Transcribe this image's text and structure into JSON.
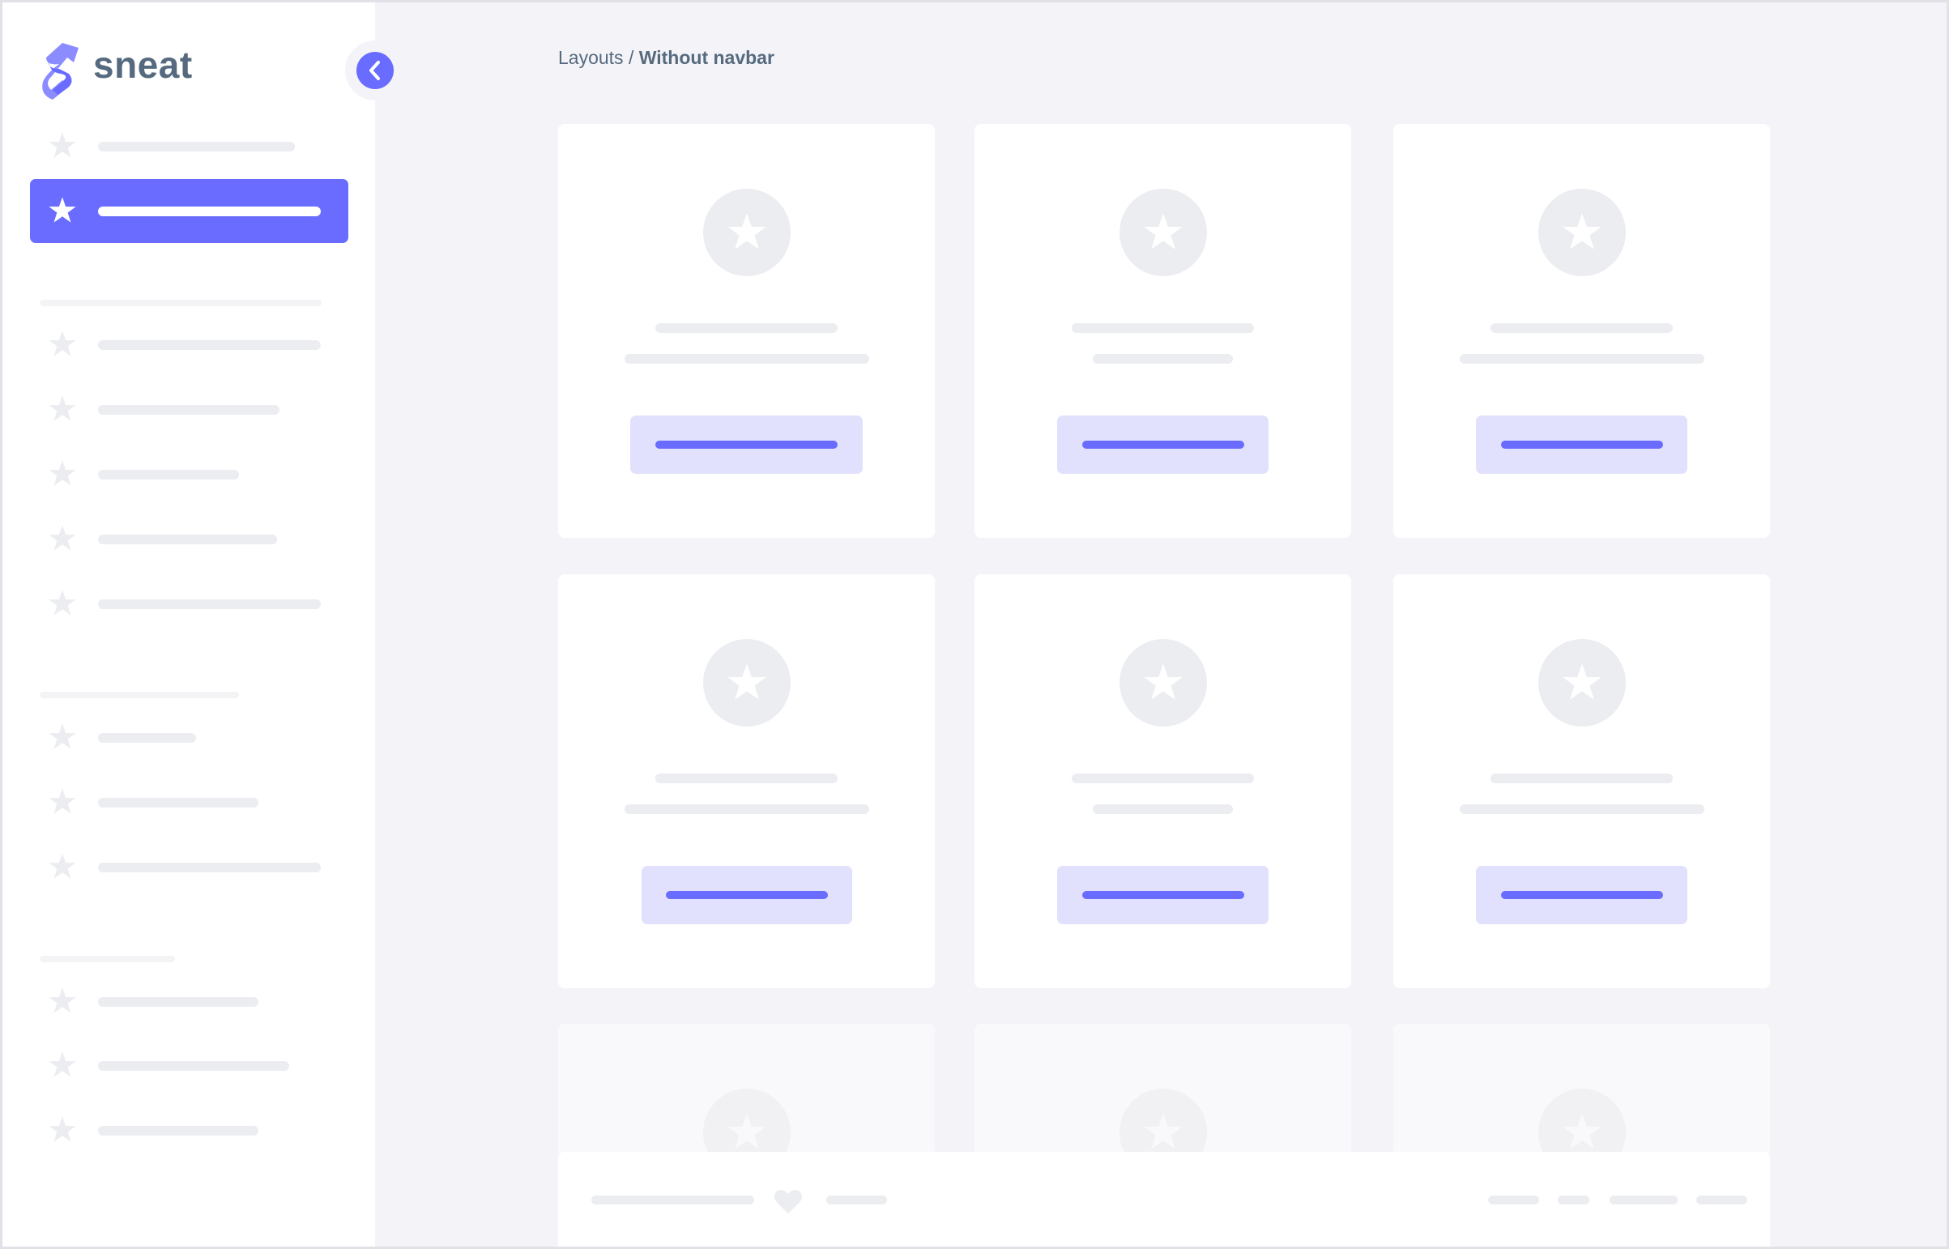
{
  "app": {
    "logo_text": "sneat",
    "brand_color": "#696cff"
  },
  "breadcrumb": {
    "parent": "Layouts",
    "separator": " / ",
    "current": "Without navbar"
  },
  "sidebar": {
    "active_item_index": 1,
    "collapse_button_icon": "chevron-left-icon",
    "item_icon": "star-icon"
  },
  "footer": {
    "icon": "heart-icon"
  }
}
